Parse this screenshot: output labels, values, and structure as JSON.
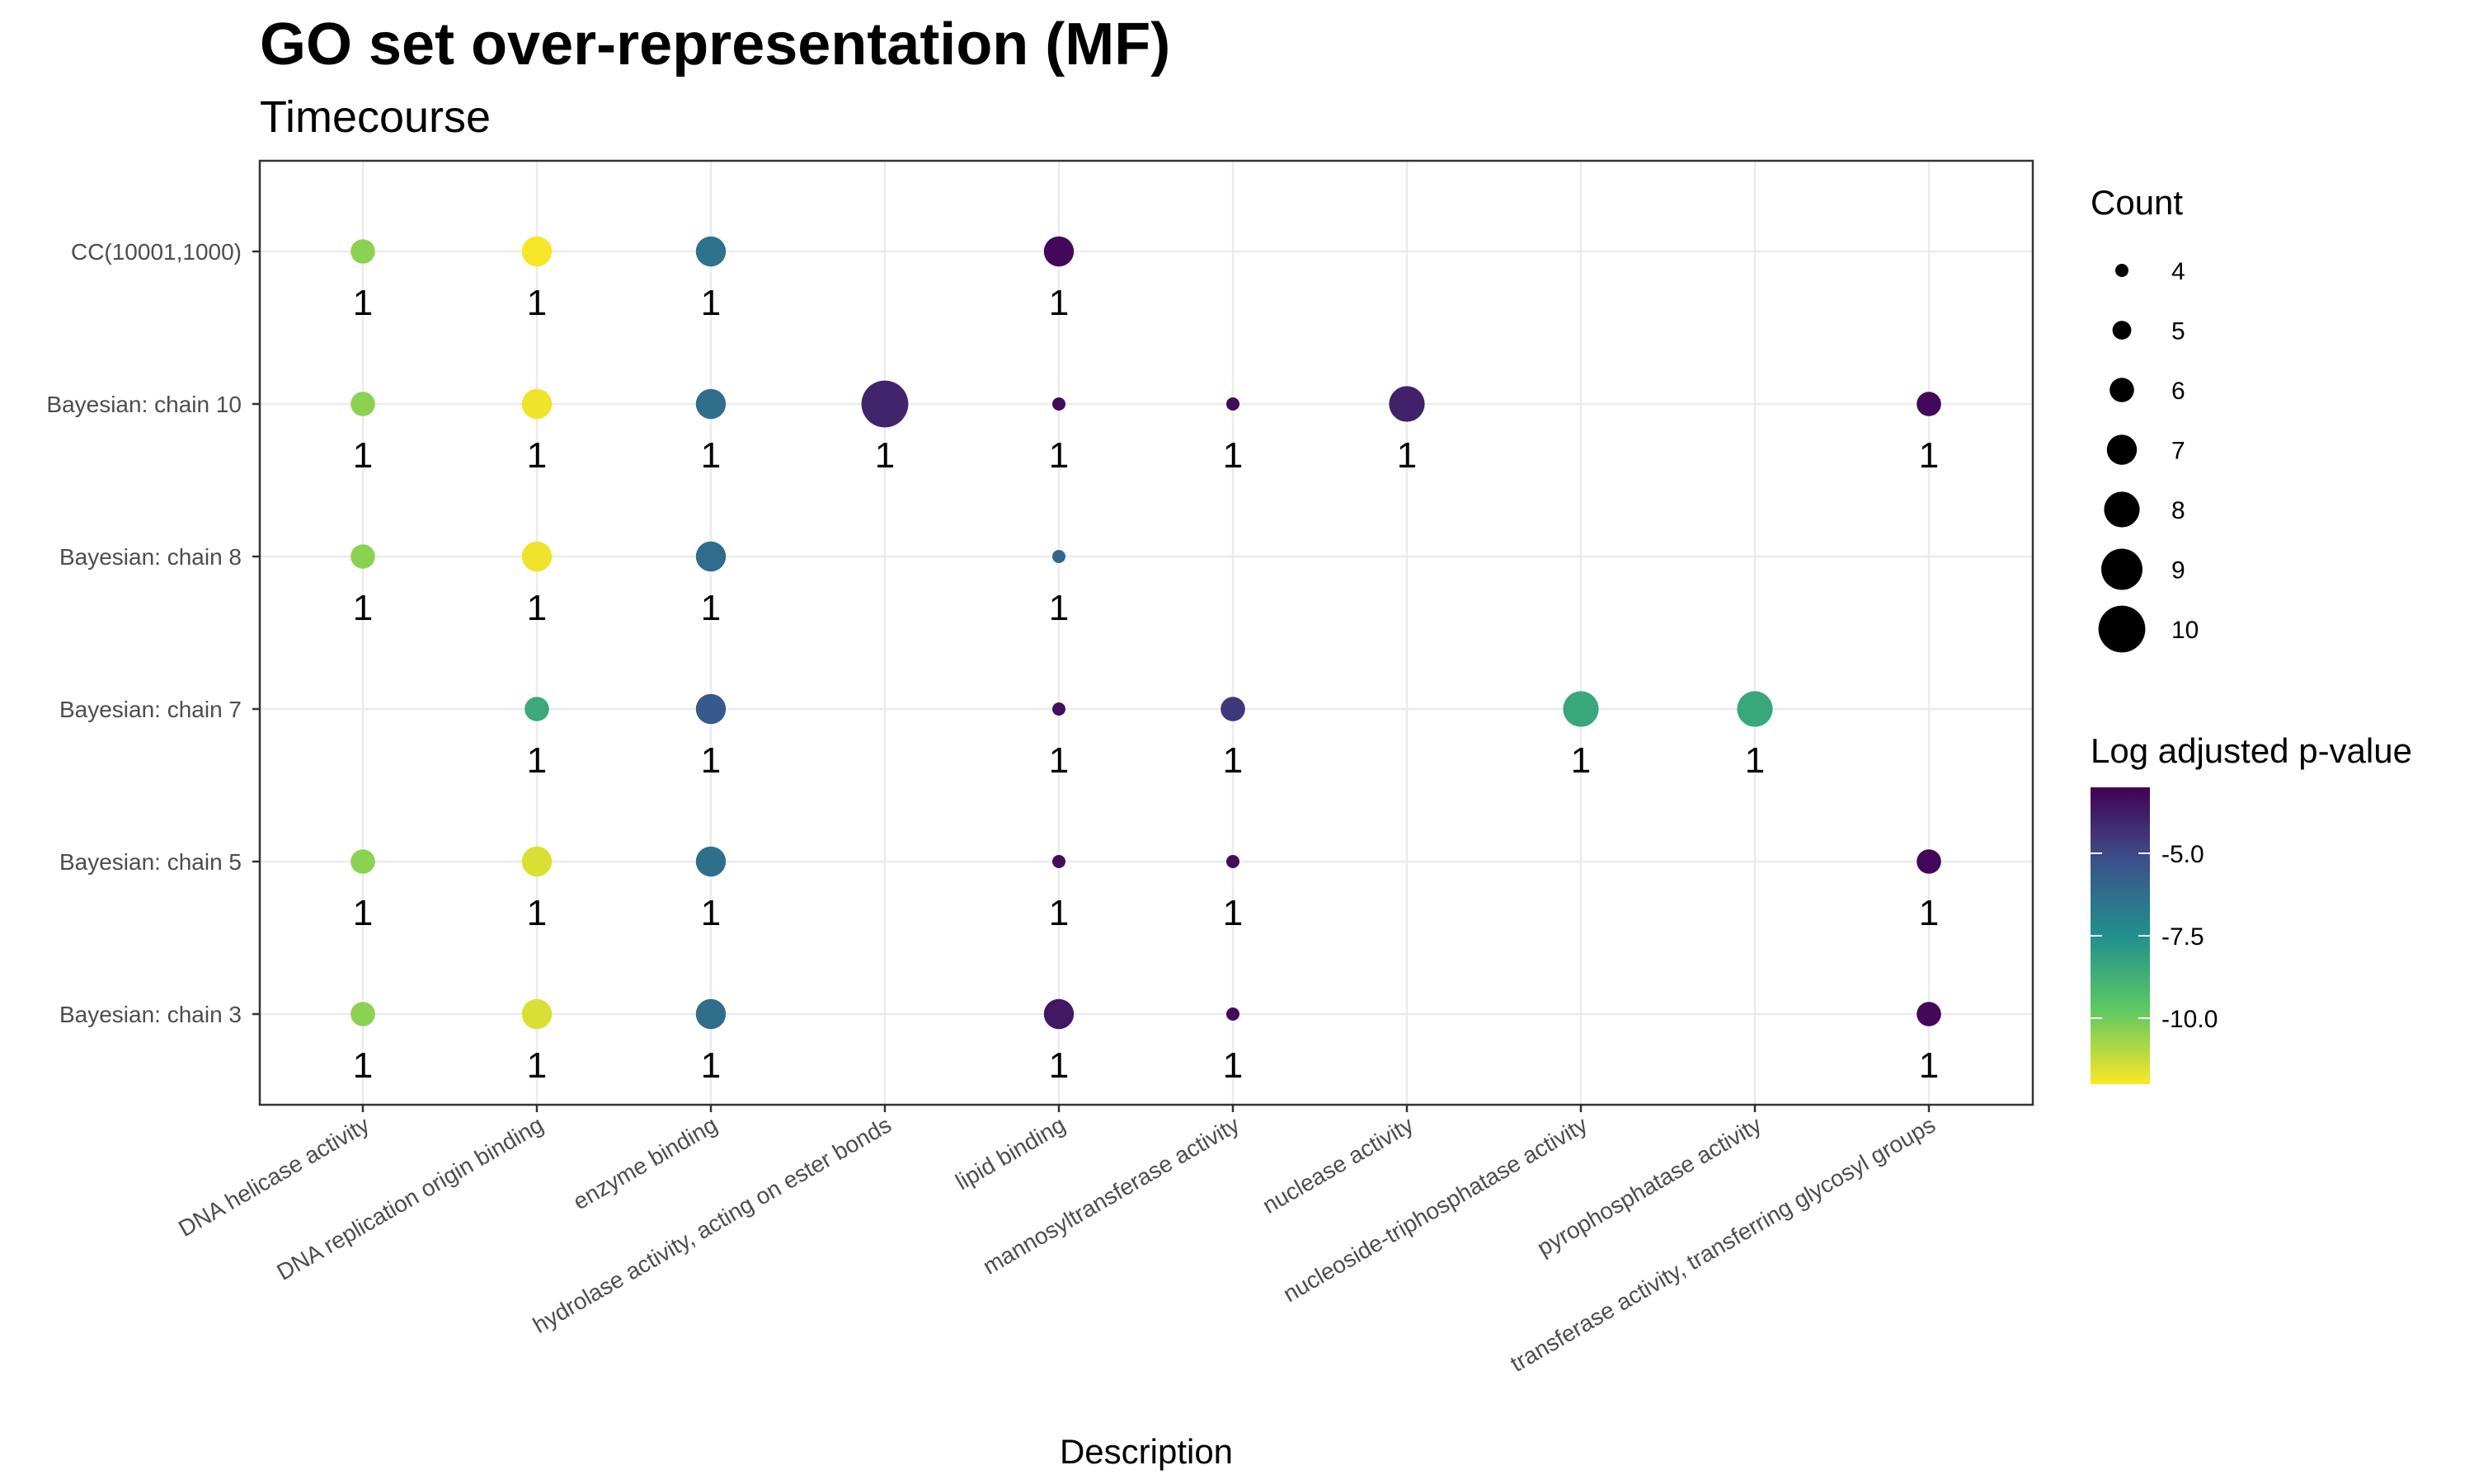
{
  "chart_data": {
    "type": "scatter",
    "title": "GO set over-representation (MF)",
    "subtitle": "Timecourse",
    "xlabel": "Description",
    "ylabel": "",
    "categories_x": [
      "DNA helicase activity",
      "DNA replication origin binding",
      "enzyme binding",
      "hydrolase activity, acting on ester bonds",
      "lipid binding",
      "mannosyltransferase activity",
      "nuclease activity",
      "nucleoside-triphosphatase activity",
      "pyrophosphatase activity",
      "transferase activity, transferring glycosyl groups"
    ],
    "categories_y": [
      "CC(10001,1000)",
      "Bayesian: chain 10",
      "Bayesian: chain 8",
      "Bayesian: chain 7",
      "Bayesian: chain 5",
      "Bayesian: chain 3"
    ],
    "grid": true,
    "size_legend": {
      "title": "Count",
      "values": [
        4,
        5,
        6,
        7,
        8,
        9,
        10
      ]
    },
    "color_legend": {
      "title": "Log adjusted p-value",
      "range": [
        -12.0,
        -3.0
      ],
      "ticks": [
        -5.0,
        -7.5,
        -10.0
      ],
      "tick_labels": [
        "-5.0",
        "-7.5",
        "-10.0"
      ],
      "palette": [
        "#440154",
        "#3b528b",
        "#21908d",
        "#5dc963",
        "#fde725"
      ]
    },
    "points": [
      {
        "x": "DNA helicase activity",
        "y": "CC(10001,1000)",
        "count": 6,
        "log_p": -10.4,
        "label": "1"
      },
      {
        "x": "DNA replication origin binding",
        "y": "CC(10001,1000)",
        "count": 7,
        "log_p": -11.9,
        "label": "1"
      },
      {
        "x": "enzyme binding",
        "y": "CC(10001,1000)",
        "count": 7,
        "log_p": -6.4,
        "label": "1"
      },
      {
        "x": "lipid binding",
        "y": "CC(10001,1000)",
        "count": 7,
        "log_p": -3.2,
        "label": "1"
      },
      {
        "x": "DNA helicase activity",
        "y": "Bayesian: chain 10",
        "count": 6,
        "log_p": -10.4,
        "label": "1"
      },
      {
        "x": "DNA replication origin binding",
        "y": "Bayesian: chain 10",
        "count": 7,
        "log_p": -11.8,
        "label": "1"
      },
      {
        "x": "enzyme binding",
        "y": "Bayesian: chain 10",
        "count": 7,
        "log_p": -6.3,
        "label": "1"
      },
      {
        "x": "hydrolase activity, acting on ester bonds",
        "y": "Bayesian: chain 10",
        "count": 10,
        "log_p": -4.0,
        "label": "1"
      },
      {
        "x": "lipid binding",
        "y": "Bayesian: chain 10",
        "count": 4,
        "log_p": -3.3,
        "label": "1"
      },
      {
        "x": "mannosyltransferase activity",
        "y": "Bayesian: chain 10",
        "count": 4,
        "log_p": -3.3,
        "label": "1"
      },
      {
        "x": "nuclease activity",
        "y": "Bayesian: chain 10",
        "count": 8,
        "log_p": -3.9,
        "label": "1"
      },
      {
        "x": "transferase activity, transferring glycosyl groups",
        "y": "Bayesian: chain 10",
        "count": 6,
        "log_p": -3.2,
        "label": "1"
      },
      {
        "x": "DNA helicase activity",
        "y": "Bayesian: chain 8",
        "count": 6,
        "log_p": -10.4,
        "label": "1"
      },
      {
        "x": "DNA replication origin binding",
        "y": "Bayesian: chain 8",
        "count": 7,
        "log_p": -11.8,
        "label": "1"
      },
      {
        "x": "enzyme binding",
        "y": "Bayesian: chain 8",
        "count": 7,
        "log_p": -6.2,
        "label": "1"
      },
      {
        "x": "lipid binding",
        "y": "Bayesian: chain 8",
        "count": 4,
        "log_p": -6.0,
        "label": "1"
      },
      {
        "x": "DNA replication origin binding",
        "y": "Bayesian: chain 7",
        "count": 6,
        "log_p": -8.5,
        "label": "1"
      },
      {
        "x": "enzyme binding",
        "y": "Bayesian: chain 7",
        "count": 7,
        "log_p": -5.5,
        "label": "1"
      },
      {
        "x": "lipid binding",
        "y": "Bayesian: chain 7",
        "count": 4,
        "log_p": -3.4,
        "label": "1"
      },
      {
        "x": "mannosyltransferase activity",
        "y": "Bayesian: chain 7",
        "count": 6,
        "log_p": -4.5,
        "label": "1"
      },
      {
        "x": "nucleoside-triphosphatase activity",
        "y": "Bayesian: chain 7",
        "count": 8,
        "log_p": -8.4,
        "label": "1"
      },
      {
        "x": "pyrophosphatase activity",
        "y": "Bayesian: chain 7",
        "count": 8,
        "log_p": -8.4,
        "label": "1"
      },
      {
        "x": "DNA helicase activity",
        "y": "Bayesian: chain 5",
        "count": 6,
        "log_p": -10.4,
        "label": "1"
      },
      {
        "x": "DNA replication origin binding",
        "y": "Bayesian: chain 5",
        "count": 7,
        "log_p": -11.5,
        "label": "1"
      },
      {
        "x": "enzyme binding",
        "y": "Bayesian: chain 5",
        "count": 7,
        "log_p": -6.3,
        "label": "1"
      },
      {
        "x": "lipid binding",
        "y": "Bayesian: chain 5",
        "count": 4,
        "log_p": -3.3,
        "label": "1"
      },
      {
        "x": "mannosyltransferase activity",
        "y": "Bayesian: chain 5",
        "count": 4,
        "log_p": -3.3,
        "label": "1"
      },
      {
        "x": "transferase activity, transferring glycosyl groups",
        "y": "Bayesian: chain 5",
        "count": 6,
        "log_p": -3.2,
        "label": "1"
      },
      {
        "x": "DNA helicase activity",
        "y": "Bayesian: chain 3",
        "count": 6,
        "log_p": -10.4,
        "label": "1"
      },
      {
        "x": "DNA replication origin binding",
        "y": "Bayesian: chain 3",
        "count": 7,
        "log_p": -11.5,
        "label": "1"
      },
      {
        "x": "enzyme binding",
        "y": "Bayesian: chain 3",
        "count": 7,
        "log_p": -6.3,
        "label": "1"
      },
      {
        "x": "lipid binding",
        "y": "Bayesian: chain 3",
        "count": 7,
        "log_p": -3.6,
        "label": "1"
      },
      {
        "x": "mannosyltransferase activity",
        "y": "Bayesian: chain 3",
        "count": 4,
        "log_p": -3.3,
        "label": "1"
      },
      {
        "x": "transferase activity, transferring glycosyl groups",
        "y": "Bayesian: chain 3",
        "count": 6,
        "log_p": -3.2,
        "label": "1"
      }
    ]
  }
}
